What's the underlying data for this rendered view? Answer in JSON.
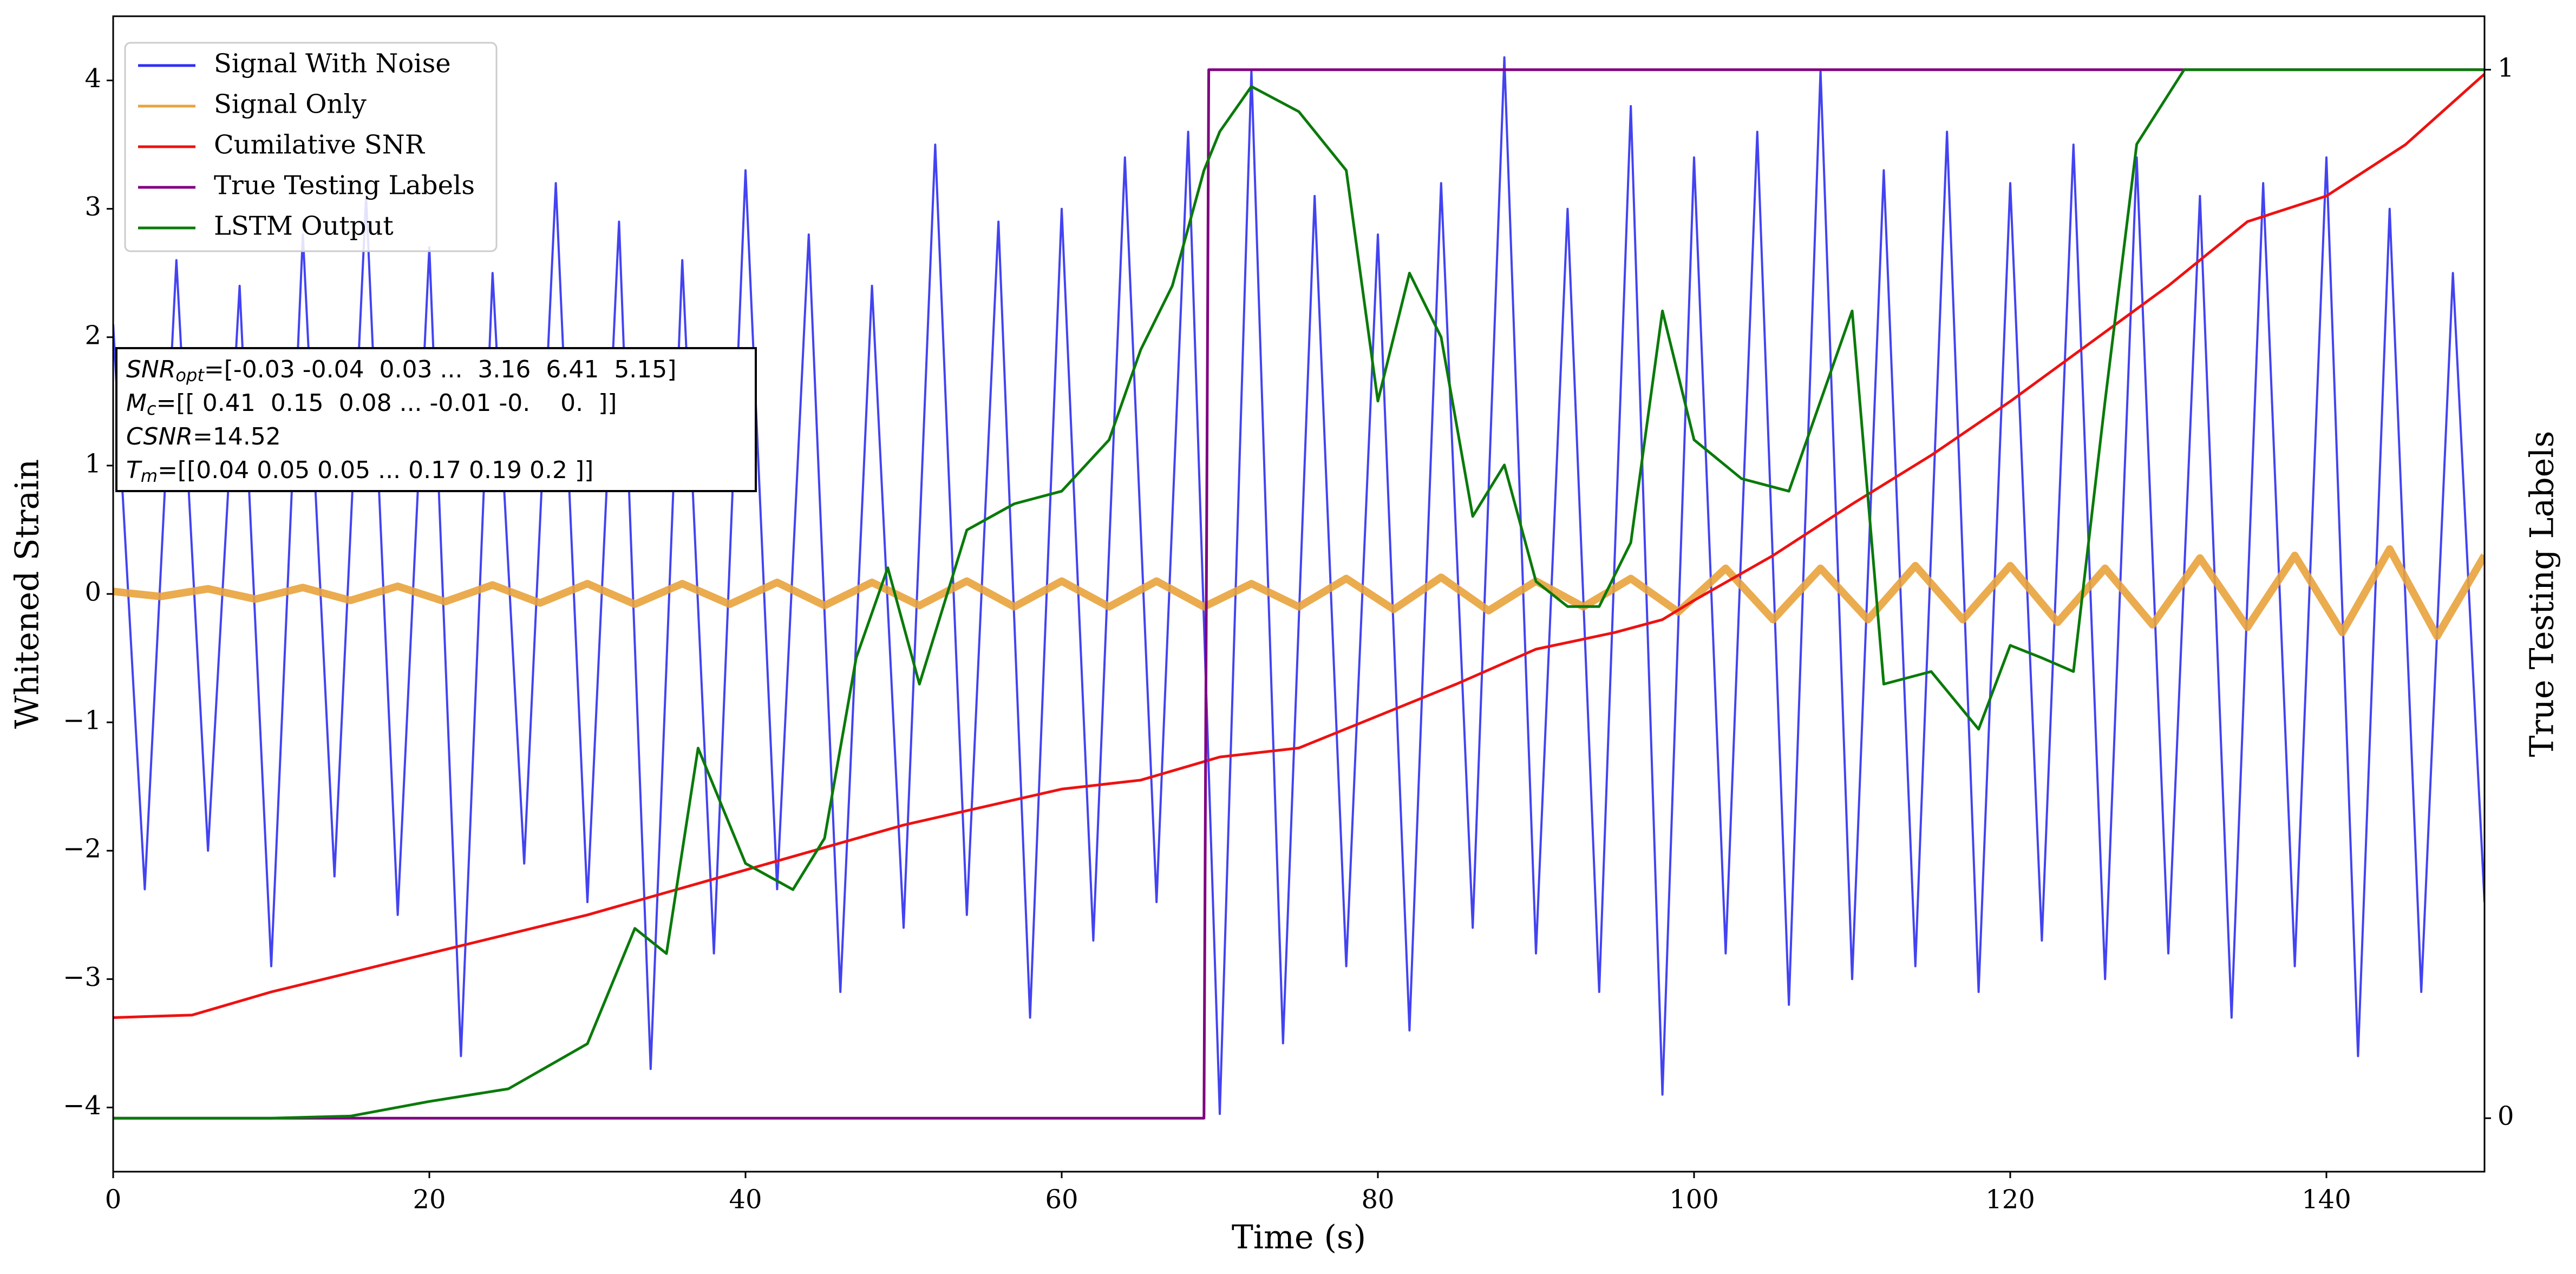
{
  "chart_data": {
    "type": "line",
    "xlabel": "Time (s)",
    "ylabel": "Whitened Strain",
    "y2label": "True Testing Labels",
    "xlim": [
      0,
      150
    ],
    "xticks": [
      0,
      20,
      40,
      60,
      80,
      100,
      120,
      140
    ],
    "ylim": [
      -4.5,
      4.5
    ],
    "yticks": [
      {
        "value": -4,
        "label": "−4"
      },
      {
        "value": -3,
        "label": "−3"
      },
      {
        "value": -2,
        "label": "−2"
      },
      {
        "value": -1,
        "label": "−1"
      },
      0,
      1,
      2,
      3,
      4
    ],
    "y2lim": [
      -0.051,
      1.051
    ],
    "y2ticks": [
      0,
      1
    ],
    "legend": "upper left",
    "series": [
      {
        "name": "Signal With Noise",
        "color": "#2f2ff0",
        "x": [
          0,
          2,
          4,
          6,
          8,
          10,
          12,
          14,
          16,
          18,
          20,
          22,
          24,
          26,
          28,
          30,
          32,
          34,
          36,
          38,
          40,
          42,
          44,
          46,
          48,
          50,
          52,
          54,
          56,
          58,
          60,
          62,
          64,
          66,
          68,
          70,
          72,
          74,
          76,
          78,
          80,
          82,
          84,
          86,
          88,
          90,
          92,
          94,
          96,
          98,
          100,
          102,
          104,
          106,
          108,
          110,
          112,
          114,
          116,
          118,
          120,
          122,
          124,
          126,
          128,
          130,
          132,
          134,
          136,
          138,
          140,
          142,
          144,
          146,
          148,
          150
        ],
        "values": [
          2.1,
          -2.3,
          2.6,
          -2.0,
          2.4,
          -2.9,
          2.8,
          -2.2,
          3.1,
          -2.5,
          2.7,
          -3.6,
          2.5,
          -2.1,
          3.2,
          -2.4,
          2.9,
          -3.7,
          2.6,
          -2.8,
          3.3,
          -2.3,
          2.8,
          -3.1,
          2.4,
          -2.6,
          3.5,
          -2.5,
          2.9,
          -3.3,
          3.0,
          -2.7,
          3.4,
          -2.4,
          3.6,
          -4.05,
          4.08,
          -3.5,
          3.1,
          -2.9,
          2.8,
          -3.4,
          3.2,
          -2.6,
          4.18,
          -2.8,
          3.0,
          -3.1,
          3.8,
          -3.9,
          3.4,
          -2.8,
          3.6,
          -3.2,
          4.08,
          -3.0,
          3.3,
          -2.9,
          3.6,
          -3.1,
          3.2,
          -2.7,
          3.5,
          -3.0,
          3.4,
          -2.8,
          3.1,
          -3.3,
          3.2,
          -2.9,
          3.4,
          -3.6,
          3.0,
          -3.1,
          2.5,
          -2.4
        ]
      },
      {
        "name": "Signal Only",
        "color": "#e8a33c",
        "x": [
          0,
          3,
          6,
          9,
          12,
          15,
          18,
          21,
          24,
          27,
          30,
          33,
          36,
          39,
          42,
          45,
          48,
          51,
          54,
          57,
          60,
          63,
          66,
          69,
          72,
          75,
          78,
          81,
          84,
          87,
          90,
          93,
          96,
          99,
          102,
          105,
          108,
          111,
          114,
          117,
          120,
          123,
          126,
          129,
          132,
          135,
          138,
          141,
          144,
          147,
          150
        ],
        "values": [
          0.02,
          -0.02,
          0.04,
          -0.04,
          0.05,
          -0.05,
          0.06,
          -0.06,
          0.07,
          -0.07,
          0.08,
          -0.08,
          0.08,
          -0.08,
          0.09,
          -0.09,
          0.09,
          -0.09,
          0.1,
          -0.1,
          0.1,
          -0.1,
          0.1,
          -0.1,
          0.08,
          -0.1,
          0.12,
          -0.12,
          0.13,
          -0.13,
          0.1,
          -0.1,
          0.12,
          -0.14,
          0.2,
          -0.2,
          0.2,
          -0.2,
          0.22,
          -0.2,
          0.22,
          -0.22,
          0.2,
          -0.24,
          0.28,
          -0.26,
          0.3,
          -0.3,
          0.35,
          -0.33,
          0.3
        ]
      },
      {
        "name": "Cumilative SNR",
        "color": "#ee1111",
        "x": [
          0,
          5,
          10,
          15,
          20,
          30,
          40,
          50,
          60,
          65,
          70,
          75,
          80,
          85,
          90,
          95,
          98,
          100,
          105,
          110,
          115,
          120,
          125,
          130,
          135,
          140,
          145,
          150
        ],
        "values": [
          -3.3,
          -3.28,
          -3.1,
          -2.95,
          -2.8,
          -2.5,
          -2.15,
          -1.8,
          -1.52,
          -1.45,
          -1.27,
          -1.2,
          -0.95,
          -0.7,
          -0.43,
          -0.3,
          -0.2,
          -0.05,
          0.3,
          0.7,
          1.08,
          1.5,
          1.95,
          2.4,
          2.9,
          3.1,
          3.5,
          4.05
        ]
      },
      {
        "name": "True Testing Labels",
        "color": "#800080",
        "axis": "y2",
        "x": [
          0,
          69,
          69.3,
          150
        ],
        "values": [
          0,
          0,
          1,
          1
        ]
      },
      {
        "name": "LSTM Output",
        "color": "#0a7a0a",
        "axis": "y2",
        "x": [
          0,
          10,
          15,
          20,
          25,
          30,
          33,
          35,
          37,
          40,
          43,
          45,
          47,
          49,
          51,
          54,
          57,
          60,
          63,
          65,
          67,
          69,
          70,
          72,
          75,
          78,
          80,
          82,
          84,
          86,
          88,
          90,
          92,
          94,
          96,
          98,
          100,
          103,
          106,
          110,
          112,
          115,
          118,
          120,
          122,
          124,
          126,
          128,
          131,
          150
        ],
        "values": [
          0,
          0,
          0.002,
          0.016,
          0.028,
          0.071,
          0.181,
          0.157,
          0.353,
          0.243,
          0.218,
          0.267,
          0.439,
          0.525,
          0.414,
          0.561,
          0.586,
          0.598,
          0.647,
          0.733,
          0.794,
          0.904,
          0.941,
          0.984,
          0.96,
          0.904,
          0.684,
          0.806,
          0.745,
          0.574,
          0.623,
          0.512,
          0.488,
          0.488,
          0.549,
          0.77,
          0.647,
          0.61,
          0.598,
          0.77,
          0.414,
          0.426,
          0.371,
          0.451,
          0.439,
          0.426,
          0.684,
          0.929,
          1,
          1
        ]
      }
    ],
    "annotation": [
      {
        "symbol": "SNR",
        "subscript": "opt",
        "text": "=[-0.03 -0.04  0.03 ...  3.16  6.41  5.15]"
      },
      {
        "symbol": "M",
        "subscript": "c",
        "text": "=[[ 0.41  0.15  0.08 ... -0.01 -0.    0.  ]]"
      },
      {
        "symbol": "CSNR",
        "text": "=14.52"
      },
      {
        "symbol": "T",
        "subscript": "m",
        "text": "=[[0.04 0.05 0.05 ... 0.17 0.19 0.2 ]]"
      }
    ]
  }
}
